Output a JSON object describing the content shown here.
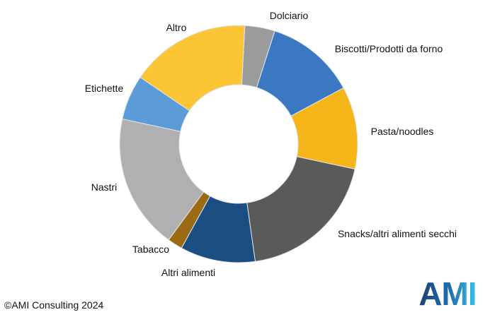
{
  "chart_data": {
    "type": "pie",
    "variant": "donut",
    "title": "",
    "slices": [
      {
        "label": "Dolciario",
        "value": 4,
        "color": "#9b9b9b"
      },
      {
        "label": "Biscotti/Prodotti da forno",
        "value": 12,
        "color": "#3a78c2"
      },
      {
        "label": "Pasta/noodles",
        "value": 11,
        "color": "#f6b519"
      },
      {
        "label": "Snacks/altri alimenti secchi",
        "value": 19,
        "color": "#5a5a5a"
      },
      {
        "label": "Altri alimenti",
        "value": 10,
        "color": "#1a4e80"
      },
      {
        "label": "Tabacco",
        "value": 2,
        "color": "#9a6b12"
      },
      {
        "label": "Nastri",
        "value": 18,
        "color": "#b0b0b0"
      },
      {
        "label": "Etichette",
        "value": 6,
        "color": "#5b9bd8"
      },
      {
        "label": "Altro",
        "value": 16,
        "color": "#fcc535"
      }
    ]
  },
  "footer": {
    "copyright": "©AMI Consulting 2024"
  },
  "logo": {
    "text": "AMI",
    "colors": [
      "#1f3f6e",
      "#1d6fb0",
      "#3ec3e6"
    ]
  }
}
